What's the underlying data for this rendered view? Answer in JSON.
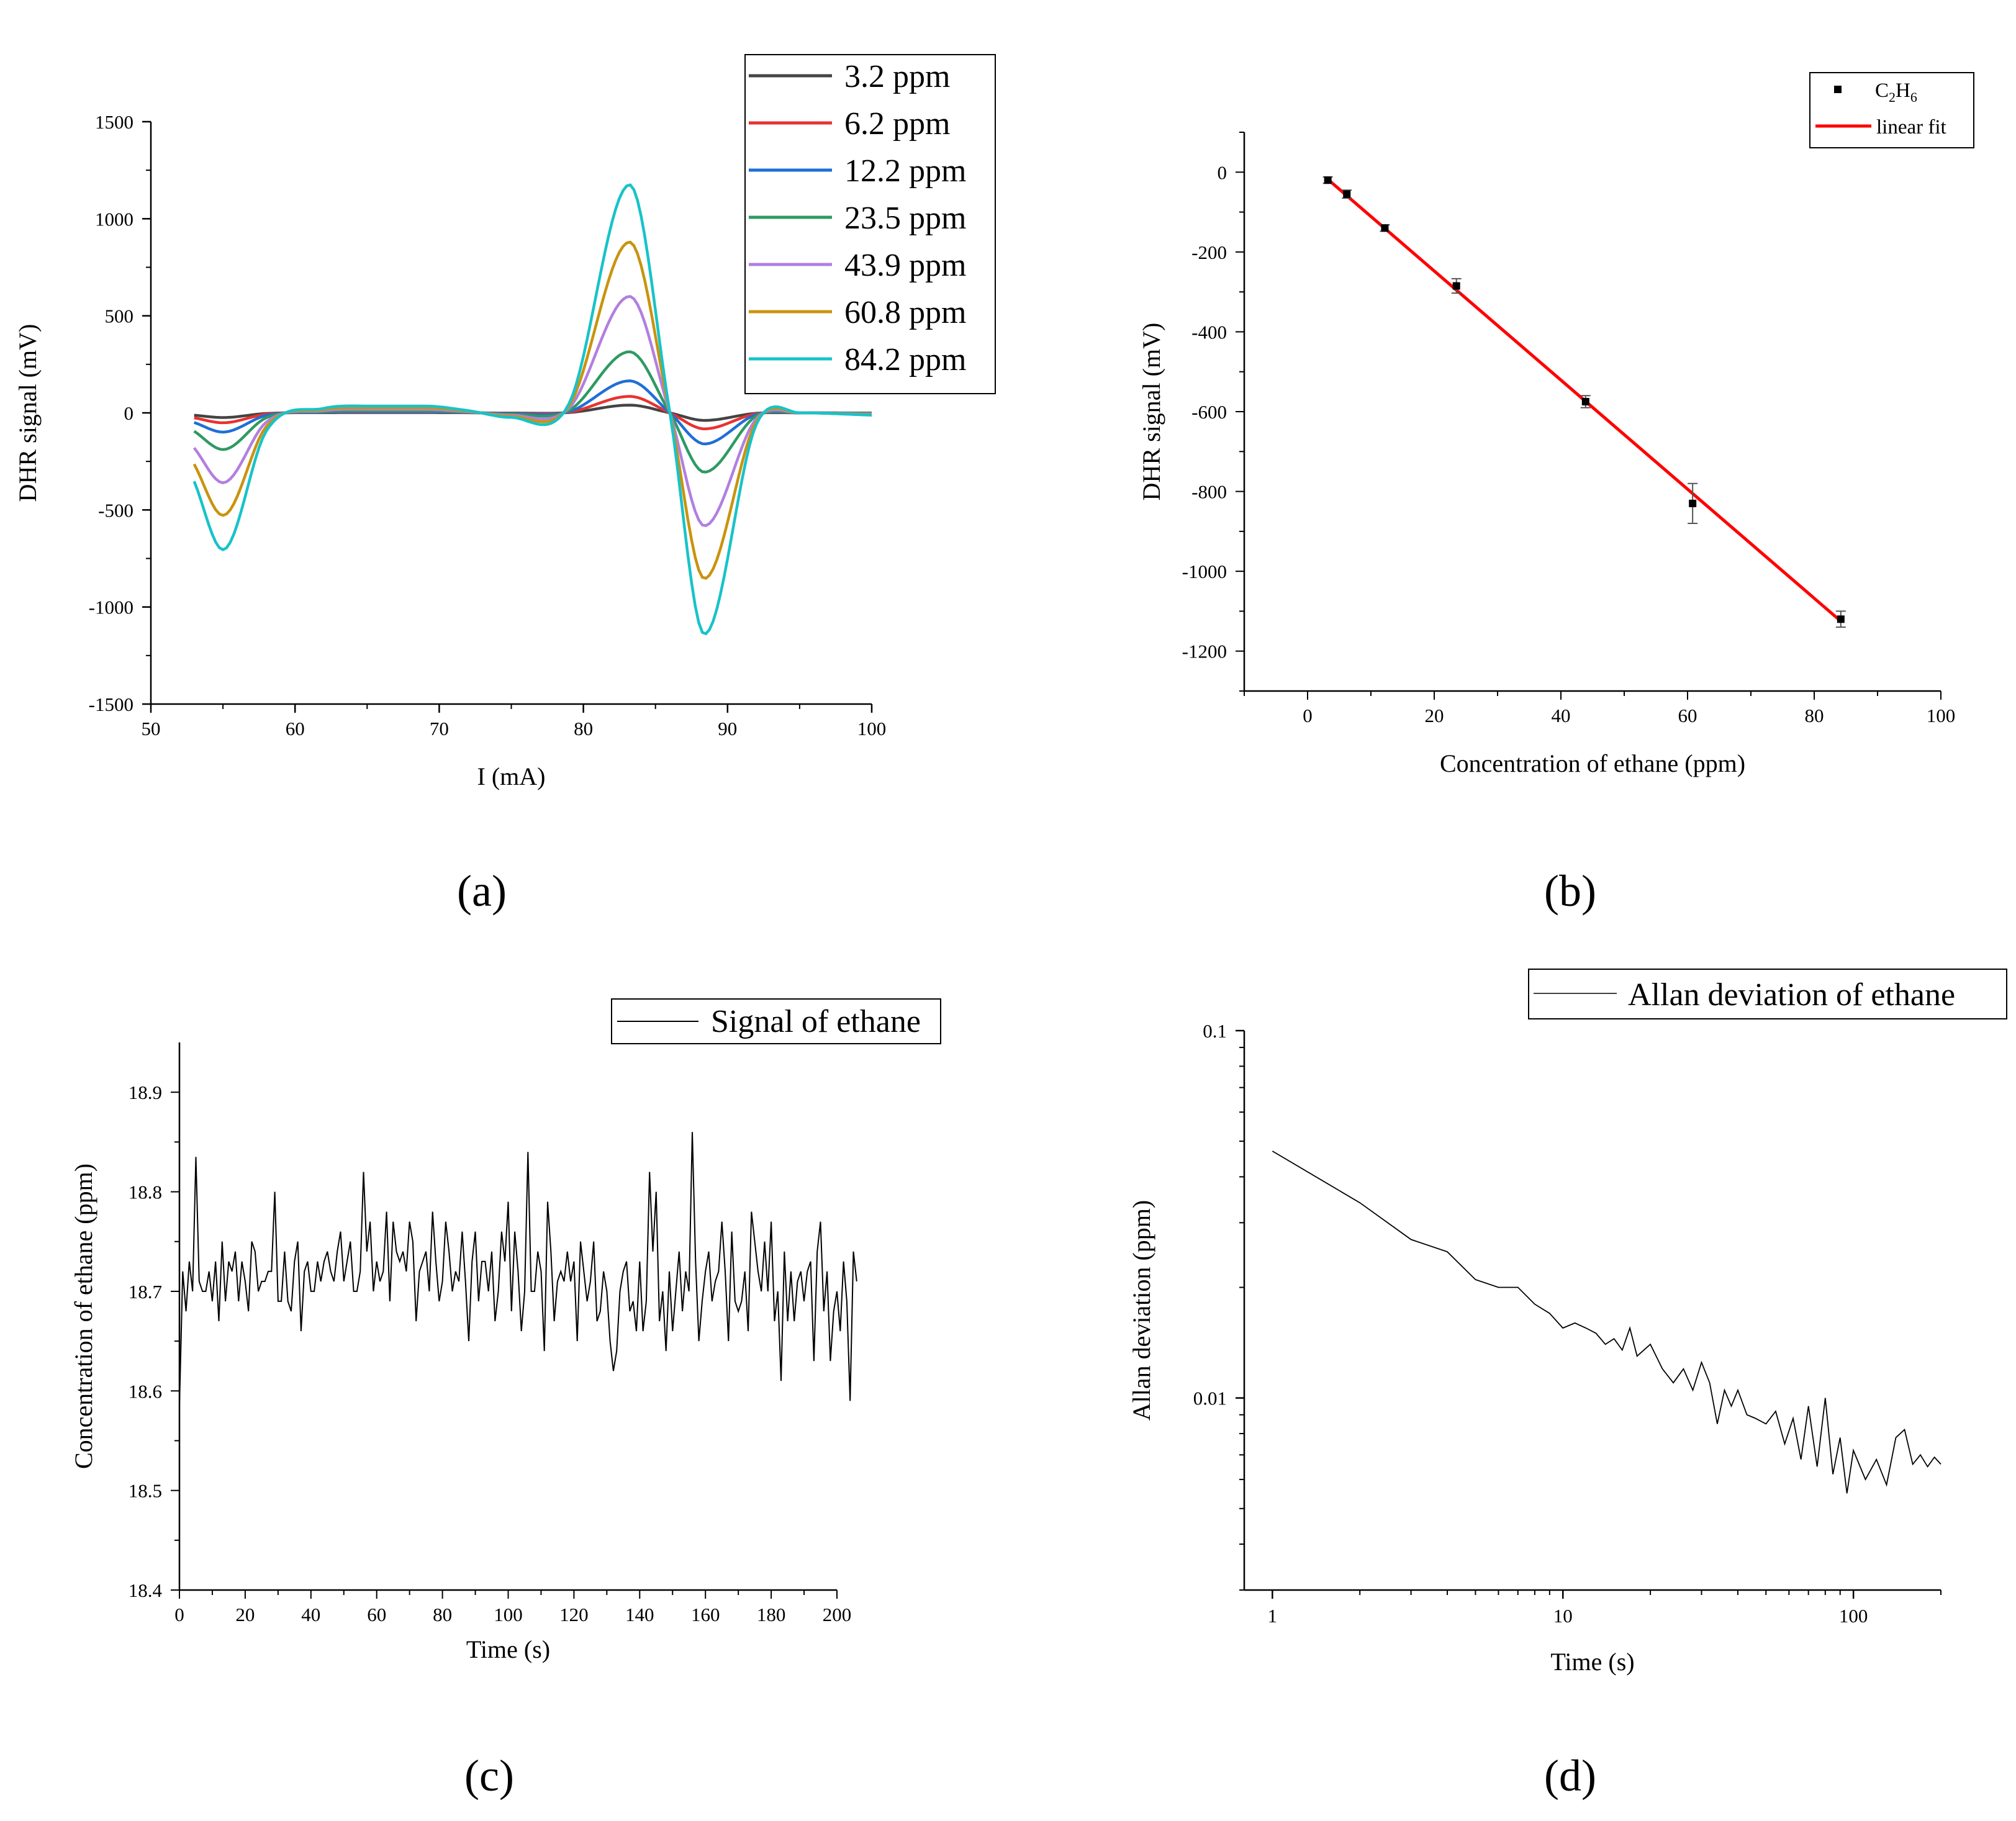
{
  "chart_data": [
    {
      "panel": "(a)",
      "type": "line",
      "xlabel": "I (mA)",
      "ylabel": "DHR signal (mV)",
      "xlim": [
        50,
        100
      ],
      "ylim": [
        -1500,
        1500
      ],
      "xticks": [
        50,
        60,
        70,
        80,
        90,
        100
      ],
      "yticks": [
        -1500,
        -1000,
        -500,
        0,
        500,
        1000,
        1500
      ],
      "legend_position": "top-right",
      "shape_x": [
        53,
        55,
        58,
        62,
        65,
        69,
        72,
        75,
        79,
        83.2,
        86,
        88.4,
        92,
        95,
        100
      ],
      "shape_y": [
        -0.3,
        -0.6,
        -0.08,
        0.02,
        0.03,
        0.03,
        0.01,
        -0.02,
        0.04,
        1.0,
        0,
        -0.97,
        -0.05,
        0.0,
        -0.01
      ],
      "series": [
        {
          "name": "3.2 ppm",
          "color": "#444444",
          "scale": 40
        },
        {
          "name": "6.2 ppm",
          "color": "#e8332f",
          "scale": 85
        },
        {
          "name": "12.2 ppm",
          "color": "#1f6fd6",
          "scale": 165
        },
        {
          "name": "23.5 ppm",
          "color": "#2e9a62",
          "scale": 315
        },
        {
          "name": "43.9 ppm",
          "color": "#b27fe0",
          "scale": 600
        },
        {
          "name": "60.8 ppm",
          "color": "#c9930d",
          "scale": 880
        },
        {
          "name": "84.2 ppm",
          "color": "#17c3c9",
          "scale": 1175
        }
      ]
    },
    {
      "panel": "(b)",
      "type": "scatter",
      "xlabel": "Concentration of ethane (ppm)",
      "ylabel": "DHR signal (mV)",
      "xlim": [
        -10,
        100
      ],
      "ylim": [
        -1300,
        100
      ],
      "xticks": [
        0,
        20,
        40,
        60,
        80,
        100
      ],
      "yticks": [
        -1200,
        -1000,
        -800,
        -600,
        -400,
        -200,
        0
      ],
      "legend_position": "top-right",
      "legend": {
        "points_label_main": "C",
        "points_sub1": "2",
        "points_mid": "H",
        "points_sub2": "6",
        "fit_label": "linear fit"
      },
      "x": [
        3.2,
        6.2,
        12.2,
        23.5,
        43.9,
        60.8,
        84.2
      ],
      "y": [
        -20,
        -55,
        -140,
        -285,
        -575,
        -830,
        -1120
      ],
      "error": [
        8,
        10,
        8,
        18,
        15,
        50,
        20
      ],
      "fit": {
        "x": [
          3.2,
          84.2
        ],
        "y": [
          -18,
          -1125
        ],
        "color": "#ff0000"
      }
    },
    {
      "panel": "(c)",
      "type": "line",
      "xlabel": "Time (s)",
      "ylabel": "Concentration of ethane (ppm)",
      "xlim": [
        0,
        200
      ],
      "ylim": [
        18.4,
        18.95
      ],
      "xticks": [
        0,
        20,
        40,
        60,
        80,
        100,
        120,
        140,
        160,
        180,
        200
      ],
      "yticks": [
        18.4,
        18.5,
        18.6,
        18.7,
        18.8,
        18.9
      ],
      "legend_position": "top-right",
      "series": [
        {
          "name": "Signal of ethane",
          "sample_interval_s": 1,
          "values": [
            18.585,
            18.72,
            18.68,
            18.73,
            18.7,
            18.835,
            18.71,
            18.7,
            18.7,
            18.72,
            18.69,
            18.73,
            18.67,
            18.75,
            18.69,
            18.73,
            18.72,
            18.74,
            18.69,
            18.73,
            18.71,
            18.68,
            18.75,
            18.74,
            18.7,
            18.71,
            18.71,
            18.72,
            18.72,
            18.8,
            18.69,
            18.69,
            18.74,
            18.69,
            18.68,
            18.73,
            18.75,
            18.66,
            18.72,
            18.73,
            18.7,
            18.7,
            18.73,
            18.71,
            18.73,
            18.74,
            18.72,
            18.71,
            18.74,
            18.76,
            18.71,
            18.73,
            18.75,
            18.7,
            18.7,
            18.72,
            18.82,
            18.74,
            18.77,
            18.7,
            18.73,
            18.71,
            18.72,
            18.78,
            18.69,
            18.77,
            18.74,
            18.73,
            18.74,
            18.72,
            18.77,
            18.75,
            18.67,
            18.72,
            18.73,
            18.74,
            18.7,
            18.78,
            18.73,
            18.69,
            18.71,
            18.77,
            18.74,
            18.7,
            18.72,
            18.71,
            18.76,
            18.71,
            18.65,
            18.73,
            18.76,
            18.69,
            18.73,
            18.73,
            18.7,
            18.74,
            18.67,
            18.7,
            18.76,
            18.73,
            18.79,
            18.68,
            18.76,
            18.72,
            18.66,
            18.7,
            18.84,
            18.7,
            18.7,
            18.74,
            18.72,
            18.64,
            18.79,
            18.74,
            18.67,
            18.71,
            18.72,
            18.71,
            18.74,
            18.71,
            18.73,
            18.65,
            18.75,
            18.72,
            18.69,
            18.71,
            18.75,
            18.67,
            18.68,
            18.72,
            18.7,
            18.65,
            18.62,
            18.64,
            18.7,
            18.72,
            18.73,
            18.68,
            18.69,
            18.66,
            18.73,
            18.66,
            18.69,
            18.82,
            18.74,
            18.8,
            18.67,
            18.7,
            18.64,
            18.72,
            18.66,
            18.7,
            18.74,
            18.68,
            18.72,
            18.7,
            18.86,
            18.73,
            18.65,
            18.69,
            18.72,
            18.74,
            18.69,
            18.71,
            18.72,
            18.77,
            18.72,
            18.65,
            18.76,
            18.69,
            18.68,
            18.69,
            18.72,
            18.66,
            18.78,
            18.75,
            18.72,
            18.7,
            18.75,
            18.7,
            18.77,
            18.67,
            18.7,
            18.61,
            18.74,
            18.67,
            18.72,
            18.67,
            18.71,
            18.72,
            18.69,
            18.72,
            18.73,
            18.63,
            18.74,
            18.77,
            18.68,
            18.72,
            18.63,
            18.68,
            18.7,
            18.66,
            18.73,
            18.69,
            18.59,
            18.74,
            18.71
          ]
        }
      ]
    },
    {
      "panel": "(d)",
      "type": "line",
      "scale": "log-log",
      "xlabel": "Time (s)",
      "ylabel": "Allan deviation (ppm)",
      "xlim": [
        0.8,
        200
      ],
      "ylim": [
        0.003,
        0.1
      ],
      "xticks": [
        1,
        10,
        100
      ],
      "xticklabels": [
        "1",
        "10",
        "100"
      ],
      "yticks": [
        0.01,
        0.1
      ],
      "yticklabels": [
        "0.01",
        "0.1"
      ],
      "legend_position": "top-right",
      "series": [
        {
          "name": "Allan deviation of ethane",
          "x": [
            1,
            2,
            3,
            4,
            5,
            6,
            7,
            8,
            9,
            10,
            11,
            12,
            13,
            14,
            15,
            16,
            17,
            18,
            20,
            22,
            24,
            26,
            28,
            30,
            32,
            34,
            36,
            38,
            40,
            43,
            46,
            50,
            54,
            58,
            62,
            66,
            70,
            75,
            80,
            85,
            90,
            95,
            100,
            110,
            120,
            130,
            140,
            150,
            160,
            170,
            180,
            190,
            200
          ],
          "y": [
            0.047,
            0.034,
            0.027,
            0.025,
            0.021,
            0.02,
            0.02,
            0.018,
            0.017,
            0.0155,
            0.016,
            0.0155,
            0.015,
            0.014,
            0.0145,
            0.0135,
            0.0155,
            0.013,
            0.014,
            0.012,
            0.011,
            0.012,
            0.0105,
            0.0125,
            0.011,
            0.0085,
            0.0105,
            0.0095,
            0.0105,
            0.009,
            0.0088,
            0.0085,
            0.0092,
            0.0075,
            0.0088,
            0.0068,
            0.0095,
            0.0065,
            0.01,
            0.0062,
            0.0078,
            0.0055,
            0.0072,
            0.006,
            0.0068,
            0.0058,
            0.0078,
            0.0082,
            0.0066,
            0.007,
            0.0065,
            0.0069,
            0.0066
          ]
        }
      ]
    }
  ]
}
